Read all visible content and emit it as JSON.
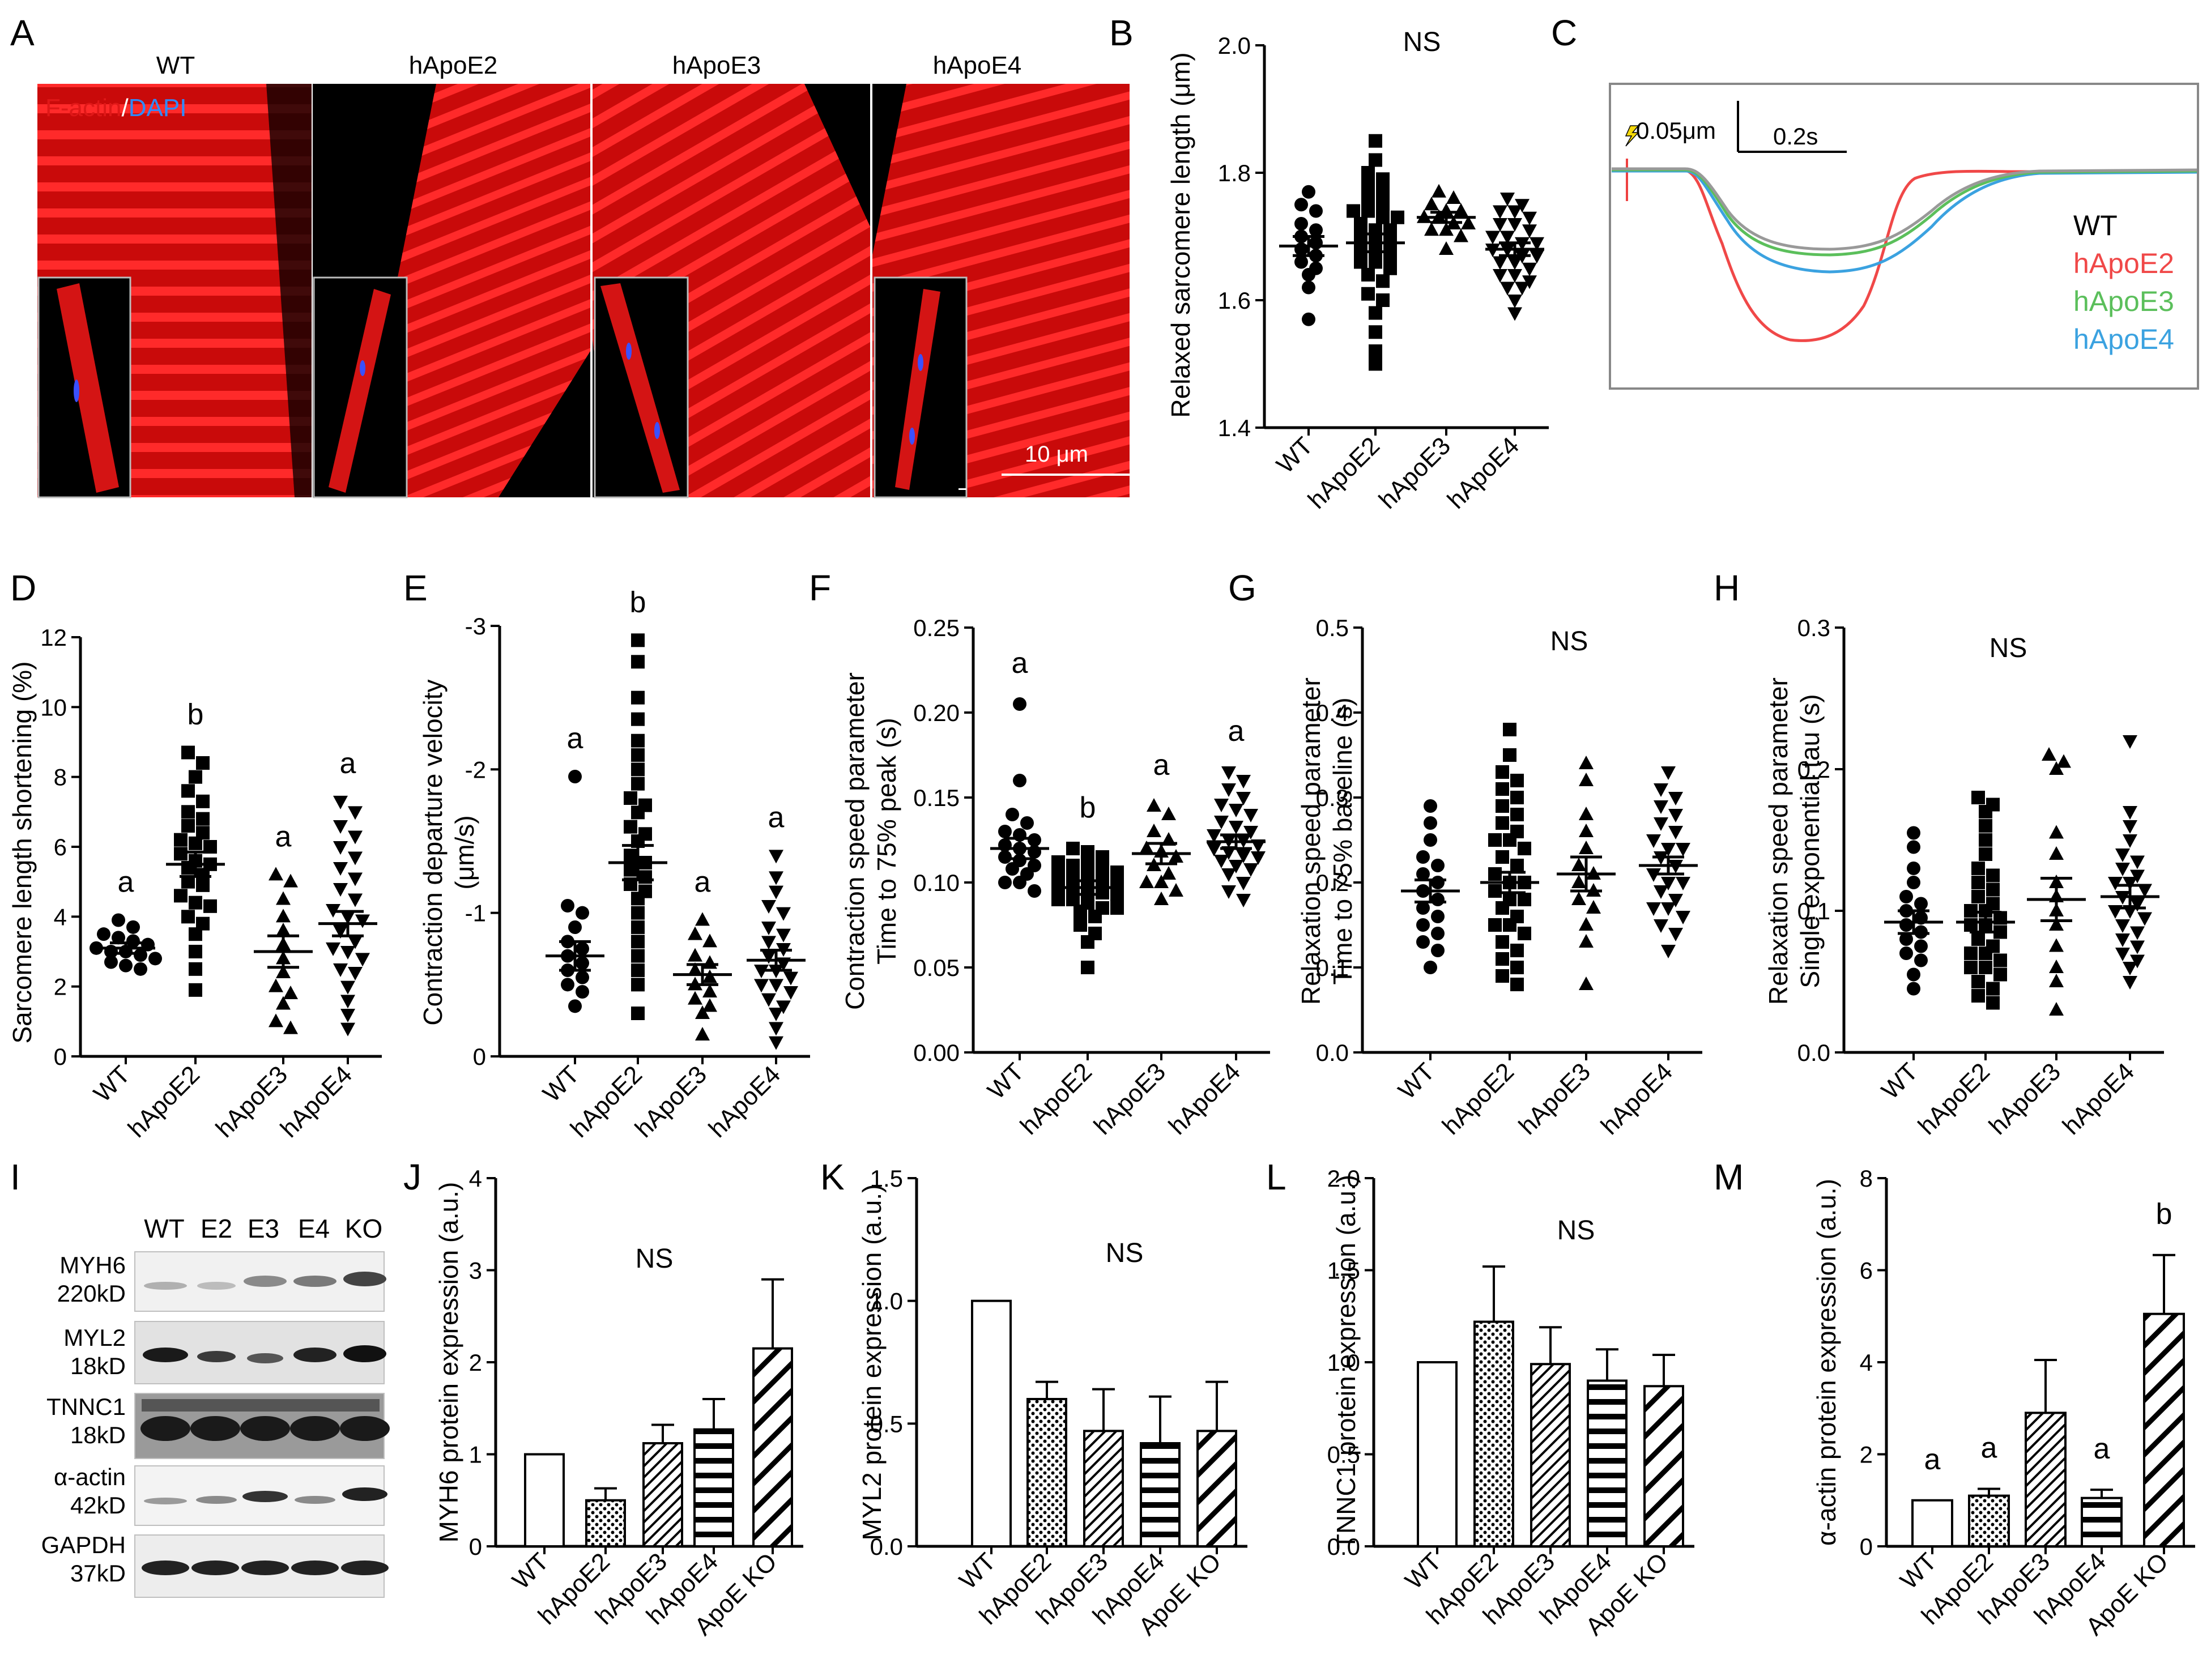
{
  "panel_letters": [
    "A",
    "B",
    "C",
    "D",
    "E",
    "F",
    "G",
    "H",
    "I",
    "J",
    "K",
    "L",
    "M"
  ],
  "colors": {
    "actin_red": "#e21212",
    "dapi_blue": "#2f6fe8",
    "wt": "#999999",
    "e2": "#f04848",
    "e3": "#5bbf5b",
    "e4": "#3ba2e0"
  },
  "panel_a": {
    "image_titles": [
      "WT",
      "hApoE2",
      "hApoE3",
      "hApoE4"
    ],
    "stain_label_red": "F-actin",
    "stain_sep": "/",
    "stain_label_blue": "DAPI",
    "scale_bar_label": "10 μm"
  },
  "panel_c": {
    "amp_scale": "0.05μm",
    "time_scale": "0.2s",
    "legend": [
      "WT",
      "hApoE2",
      "hApoE3",
      "hApoE4"
    ]
  },
  "panel_i": {
    "lane_labels": [
      "WT",
      "E2",
      "E3",
      "E4",
      "KO"
    ],
    "blots": [
      {
        "name": "MYH6",
        "kd": "220kD"
      },
      {
        "name": "MYL2",
        "kd": "18kD"
      },
      {
        "name": "TNNC1",
        "kd": "18kD"
      },
      {
        "name": "α-actin",
        "kd": "42kD"
      },
      {
        "name": "GAPDH",
        "kd": "37kD"
      }
    ]
  },
  "chart_data": [
    {
      "panel": "B",
      "type": "scatter",
      "categories": [
        "WT",
        "hApoE2",
        "hApoE3",
        "hApoE4"
      ],
      "ylabel": "Relaxed sarcomere length (μm)",
      "ylim": [
        1.4,
        2.0
      ],
      "ticks": [
        1.4,
        1.6,
        1.8,
        2.0
      ],
      "decimals": 1,
      "annotation": "NS",
      "letters": [],
      "series": [
        {
          "name": "WT",
          "marker": "circle",
          "mean": 1.685,
          "sem": 0.015,
          "values": [
            1.57,
            1.62,
            1.64,
            1.65,
            1.66,
            1.67,
            1.68,
            1.69,
            1.7,
            1.71,
            1.72,
            1.74,
            1.75,
            1.77
          ]
        },
        {
          "name": "hApoE2",
          "marker": "square",
          "mean": 1.69,
          "sem": 0.014,
          "values": [
            1.5,
            1.52,
            1.55,
            1.58,
            1.6,
            1.61,
            1.63,
            1.64,
            1.65,
            1.66,
            1.67,
            1.68,
            1.69,
            1.69,
            1.7,
            1.71,
            1.72,
            1.73,
            1.74,
            1.74,
            1.75,
            1.76,
            1.77,
            1.78,
            1.79,
            1.8,
            1.82,
            1.85,
            1.68,
            1.66,
            1.71,
            1.73
          ]
        },
        {
          "name": "hApoE3",
          "marker": "triangle",
          "mean": 1.73,
          "sem": 0.008,
          "values": [
            1.68,
            1.7,
            1.71,
            1.72,
            1.73,
            1.73,
            1.74,
            1.74,
            1.75,
            1.76,
            1.77,
            1.72,
            1.71
          ]
        },
        {
          "name": "hApoE4",
          "marker": "triangle-down",
          "mean": 1.68,
          "sem": 0.01,
          "values": [
            1.58,
            1.6,
            1.62,
            1.63,
            1.64,
            1.65,
            1.66,
            1.67,
            1.67,
            1.68,
            1.69,
            1.69,
            1.7,
            1.71,
            1.72,
            1.73,
            1.74,
            1.75,
            1.76,
            1.66,
            1.7,
            1.64,
            1.68,
            1.72,
            1.62,
            1.74
          ]
        }
      ]
    },
    {
      "panel": "D",
      "type": "scatter",
      "categories": [
        "WT",
        "hApoE2",
        "hApoE3",
        "hApoE4"
      ],
      "ylabel": "Sarcomere length shortening (%)",
      "ylim": [
        0,
        12
      ],
      "ticks": [
        0,
        2,
        4,
        6,
        8,
        10,
        12
      ],
      "decimals": 0,
      "annotation": "",
      "letters": [
        "a",
        "b",
        "a",
        "a"
      ],
      "series": [
        {
          "name": "WT",
          "marker": "circle",
          "mean": 3.1,
          "sem": 0.15,
          "values": [
            2.5,
            2.6,
            2.8,
            2.9,
            3.0,
            3.0,
            3.1,
            3.2,
            3.3,
            3.4,
            3.5,
            3.7,
            3.9,
            2.7
          ]
        },
        {
          "name": "hApoE2",
          "marker": "square",
          "mean": 5.5,
          "sem": 0.35,
          "values": [
            1.9,
            2.5,
            3.0,
            3.5,
            3.8,
            4.0,
            4.3,
            4.6,
            4.9,
            5.0,
            5.2,
            5.4,
            5.6,
            5.8,
            6.0,
            6.2,
            6.4,
            6.6,
            6.8,
            7.0,
            7.3,
            7.6,
            8.0,
            8.4,
            8.7,
            5.5,
            6.1,
            4.4
          ]
        },
        {
          "name": "hApoE3",
          "marker": "triangle",
          "mean": 3.0,
          "sem": 0.45,
          "values": [
            0.8,
            1.0,
            1.5,
            2.0,
            2.4,
            2.8,
            3.2,
            3.6,
            4.0,
            4.5,
            5.0,
            5.2,
            1.8
          ]
        },
        {
          "name": "hApoE4",
          "marker": "triangle-down",
          "mean": 3.8,
          "sem": 0.35,
          "values": [
            0.8,
            1.2,
            1.6,
            2.0,
            2.4,
            2.8,
            3.0,
            3.3,
            3.6,
            3.9,
            4.2,
            4.5,
            4.8,
            5.1,
            5.4,
            5.7,
            6.0,
            6.3,
            6.6,
            7.0,
            7.3,
            3.1,
            4.0,
            2.5
          ]
        }
      ]
    },
    {
      "panel": "E",
      "type": "scatter",
      "categories": [
        "WT",
        "hApoE2",
        "hApoE3",
        "hApoE4"
      ],
      "ylabel_lines": [
        "Contraction departure velocity",
        "(μm/s)"
      ],
      "ylim": [
        0,
        -3
      ],
      "ticks": [
        0,
        -1,
        -2,
        -3
      ],
      "decimals": 0,
      "annotation": "",
      "letters": [
        "a",
        "b",
        "a",
        "a"
      ],
      "series": [
        {
          "name": "WT",
          "marker": "circle",
          "mean": -0.7,
          "sem": 0.1,
          "values": [
            -0.35,
            -0.45,
            -0.55,
            -0.6,
            -0.65,
            -0.7,
            -0.75,
            -0.8,
            -0.9,
            -1.0,
            -1.05,
            -1.95,
            -0.5
          ]
        },
        {
          "name": "hApoE2",
          "marker": "square",
          "mean": -1.35,
          "sem": 0.12,
          "values": [
            -0.3,
            -0.5,
            -0.7,
            -0.8,
            -0.9,
            -1.0,
            -1.1,
            -1.15,
            -1.2,
            -1.3,
            -1.35,
            -1.4,
            -1.5,
            -1.55,
            -1.6,
            -1.7,
            -1.75,
            -1.8,
            -1.9,
            -2.0,
            -2.1,
            -2.2,
            -2.35,
            -2.5,
            -2.75,
            -2.9,
            -1.25,
            -0.6
          ]
        },
        {
          "name": "hApoE3",
          "marker": "triangle",
          "mean": -0.57,
          "sem": 0.07,
          "values": [
            -0.15,
            -0.3,
            -0.35,
            -0.4,
            -0.5,
            -0.55,
            -0.6,
            -0.65,
            -0.7,
            -0.8,
            -0.85,
            -0.95,
            -0.45
          ]
        },
        {
          "name": "hApoE4",
          "marker": "triangle-down",
          "mean": -0.67,
          "sem": 0.07,
          "values": [
            -0.1,
            -0.2,
            -0.3,
            -0.35,
            -0.4,
            -0.45,
            -0.5,
            -0.55,
            -0.6,
            -0.65,
            -0.7,
            -0.75,
            -0.8,
            -0.85,
            -0.9,
            -1.0,
            -1.05,
            -1.15,
            -1.25,
            -1.4,
            -0.6,
            -0.5
          ]
        }
      ]
    },
    {
      "panel": "F",
      "type": "scatter",
      "categories": [
        "WT",
        "hApoE2",
        "hApoE3",
        "hApoE4"
      ],
      "ylabel_lines": [
        "Contraction speed parameter",
        "Time to 75% peak (s)"
      ],
      "ylim": [
        0,
        0.25
      ],
      "ticks": [
        0,
        0.05,
        0.1,
        0.15,
        0.2,
        0.25
      ],
      "decimals": 2,
      "annotation": "",
      "letters": [
        "a",
        "b",
        "a",
        "a"
      ],
      "series": [
        {
          "name": "WT",
          "marker": "circle",
          "mean": 0.12,
          "sem": 0.006,
          "values": [
            0.095,
            0.1,
            0.105,
            0.108,
            0.11,
            0.113,
            0.115,
            0.118,
            0.12,
            0.122,
            0.125,
            0.128,
            0.13,
            0.135,
            0.14,
            0.16,
            0.205,
            0.1
          ]
        },
        {
          "name": "hApoE2",
          "marker": "square",
          "mean": 0.097,
          "sem": 0.004,
          "values": [
            0.05,
            0.065,
            0.07,
            0.075,
            0.08,
            0.083,
            0.085,
            0.088,
            0.09,
            0.092,
            0.094,
            0.096,
            0.098,
            0.1,
            0.102,
            0.104,
            0.106,
            0.108,
            0.11,
            0.112,
            0.115,
            0.118,
            0.12,
            0.09,
            0.1,
            0.095,
            0.085,
            0.105,
            0.11
          ]
        },
        {
          "name": "hApoE3",
          "marker": "triangle",
          "mean": 0.117,
          "sem": 0.006,
          "values": [
            0.09,
            0.095,
            0.1,
            0.105,
            0.11,
            0.115,
            0.118,
            0.12,
            0.125,
            0.13,
            0.14,
            0.145,
            0.1
          ]
        },
        {
          "name": "hApoE4",
          "marker": "triangle-down",
          "mean": 0.124,
          "sem": 0.004,
          "values": [
            0.09,
            0.095,
            0.1,
            0.105,
            0.108,
            0.11,
            0.113,
            0.116,
            0.118,
            0.12,
            0.122,
            0.125,
            0.128,
            0.13,
            0.133,
            0.136,
            0.14,
            0.143,
            0.146,
            0.15,
            0.155,
            0.16,
            0.165,
            0.115,
            0.125
          ]
        }
      ]
    },
    {
      "panel": "G",
      "type": "scatter",
      "categories": [
        "WT",
        "hApoE2",
        "hApoE3",
        "hApoE4"
      ],
      "ylabel_lines": [
        "Relaxation speed parameter",
        "Time to 75% baseline (s)"
      ],
      "ylim": [
        0,
        0.5
      ],
      "ticks": [
        0,
        0.1,
        0.2,
        0.3,
        0.4,
        0.5
      ],
      "decimals": 1,
      "annotation": "NS",
      "letters": [],
      "series": [
        {
          "name": "WT",
          "marker": "circle",
          "mean": 0.19,
          "sem": 0.013,
          "values": [
            0.1,
            0.12,
            0.14,
            0.15,
            0.16,
            0.17,
            0.18,
            0.19,
            0.2,
            0.21,
            0.22,
            0.23,
            0.25,
            0.27,
            0.29,
            0.13
          ]
        },
        {
          "name": "hApoE2",
          "marker": "square",
          "mean": 0.2,
          "sem": 0.012,
          "values": [
            0.08,
            0.09,
            0.1,
            0.11,
            0.12,
            0.13,
            0.14,
            0.15,
            0.16,
            0.17,
            0.18,
            0.19,
            0.2,
            0.21,
            0.22,
            0.23,
            0.24,
            0.25,
            0.26,
            0.27,
            0.28,
            0.29,
            0.3,
            0.31,
            0.32,
            0.33,
            0.35,
            0.38,
            0.2,
            0.15,
            0.25,
            0.18
          ]
        },
        {
          "name": "hApoE3",
          "marker": "triangle",
          "mean": 0.21,
          "sem": 0.02,
          "values": [
            0.08,
            0.13,
            0.15,
            0.17,
            0.18,
            0.2,
            0.21,
            0.22,
            0.24,
            0.26,
            0.28,
            0.32,
            0.34,
            0.19
          ]
        },
        {
          "name": "hApoE4",
          "marker": "triangle-down",
          "mean": 0.22,
          "sem": 0.01,
          "values": [
            0.12,
            0.14,
            0.15,
            0.16,
            0.17,
            0.18,
            0.19,
            0.2,
            0.21,
            0.22,
            0.23,
            0.24,
            0.25,
            0.26,
            0.27,
            0.28,
            0.29,
            0.3,
            0.31,
            0.33,
            0.2,
            0.24,
            0.17
          ]
        }
      ]
    },
    {
      "panel": "H",
      "type": "scatter",
      "categories": [
        "WT",
        "hApoE2",
        "hApoE3",
        "hApoE4"
      ],
      "ylabel_lines": [
        "Relaxation speed parameter",
        "Single exponential tau (s)"
      ],
      "ylim": [
        0,
        0.3
      ],
      "ticks": [
        0,
        0.1,
        0.2,
        0.3
      ],
      "decimals": 1,
      "annotation": "NS",
      "letters": [],
      "series": [
        {
          "name": "WT",
          "marker": "circle",
          "mean": 0.092,
          "sem": 0.008,
          "values": [
            0.045,
            0.055,
            0.065,
            0.07,
            0.075,
            0.08,
            0.085,
            0.09,
            0.095,
            0.1,
            0.105,
            0.11,
            0.12,
            0.13,
            0.145,
            0.155
          ]
        },
        {
          "name": "hApoE2",
          "marker": "square",
          "mean": 0.092,
          "sem": 0.007,
          "values": [
            0.035,
            0.04,
            0.045,
            0.05,
            0.055,
            0.06,
            0.065,
            0.07,
            0.075,
            0.08,
            0.085,
            0.09,
            0.095,
            0.1,
            0.105,
            0.11,
            0.115,
            0.12,
            0.125,
            0.13,
            0.14,
            0.15,
            0.16,
            0.17,
            0.175,
            0.18,
            0.09,
            0.1,
            0.07,
            0.06
          ]
        },
        {
          "name": "hApoE3",
          "marker": "triangle",
          "mean": 0.108,
          "sem": 0.015,
          "values": [
            0.03,
            0.05,
            0.06,
            0.075,
            0.09,
            0.1,
            0.11,
            0.12,
            0.14,
            0.155,
            0.2,
            0.205,
            0.21
          ]
        },
        {
          "name": "hApoE4",
          "marker": "triangle-down",
          "mean": 0.11,
          "sem": 0.008,
          "values": [
            0.05,
            0.06,
            0.065,
            0.07,
            0.075,
            0.08,
            0.085,
            0.09,
            0.095,
            0.1,
            0.105,
            0.11,
            0.115,
            0.12,
            0.125,
            0.13,
            0.135,
            0.14,
            0.15,
            0.16,
            0.17,
            0.22,
            0.1,
            0.12
          ]
        }
      ]
    },
    {
      "panel": "J",
      "type": "bar",
      "categories": [
        "WT",
        "hApoE2",
        "hApoE3",
        "hApoE4",
        "ApoE KO"
      ],
      "ylabel": "MYH6 protein expression (a.u.)",
      "ylim": [
        0,
        4
      ],
      "ticks": [
        0,
        1,
        2,
        3,
        4
      ],
      "decimals": 0,
      "annotation": "NS",
      "letters": [],
      "values": [
        1.0,
        0.5,
        1.12,
        1.27,
        2.15
      ],
      "errors": [
        0,
        0.13,
        0.2,
        0.33,
        0.75
      ]
    },
    {
      "panel": "K",
      "type": "bar",
      "categories": [
        "WT",
        "hApoE2",
        "hApoE3",
        "hApoE4",
        "ApoE KO"
      ],
      "ylabel": "MYL2 protein expression (a.u.)",
      "ylim": [
        0,
        1.5
      ],
      "ticks": [
        0,
        0.5,
        1.0,
        1.5
      ],
      "decimals": 1,
      "annotation": "NS",
      "letters": [],
      "values": [
        1.0,
        0.6,
        0.47,
        0.42,
        0.47
      ],
      "errors": [
        0,
        0.07,
        0.17,
        0.19,
        0.2
      ]
    },
    {
      "panel": "L",
      "type": "bar",
      "categories": [
        "WT",
        "hApoE2",
        "hApoE3",
        "hApoE4",
        "ApoE KO"
      ],
      "ylabel": "TNNC1 protein expression (a.u.)",
      "ylim": [
        0,
        2.0
      ],
      "ticks": [
        0,
        0.5,
        1.0,
        1.5,
        2.0
      ],
      "decimals": 1,
      "annotation": "NS",
      "letters": [],
      "values": [
        1.0,
        1.22,
        0.99,
        0.9,
        0.87
      ],
      "errors": [
        0,
        0.3,
        0.2,
        0.17,
        0.17
      ]
    },
    {
      "panel": "M",
      "type": "bar",
      "categories": [
        "WT",
        "hApoE2",
        "hApoE3",
        "hApoE4",
        "ApoE KO"
      ],
      "ylabel": "α-actin protein expression (a.u.)",
      "ylim": [
        0,
        8
      ],
      "ticks": [
        0,
        2,
        4,
        6,
        8
      ],
      "decimals": 0,
      "annotation": "",
      "letters": [
        "a",
        "a",
        "",
        "a",
        "b"
      ],
      "values": [
        1.0,
        1.1,
        2.9,
        1.05,
        5.05
      ],
      "errors": [
        0,
        0.15,
        1.15,
        0.18,
        1.28
      ]
    }
  ]
}
